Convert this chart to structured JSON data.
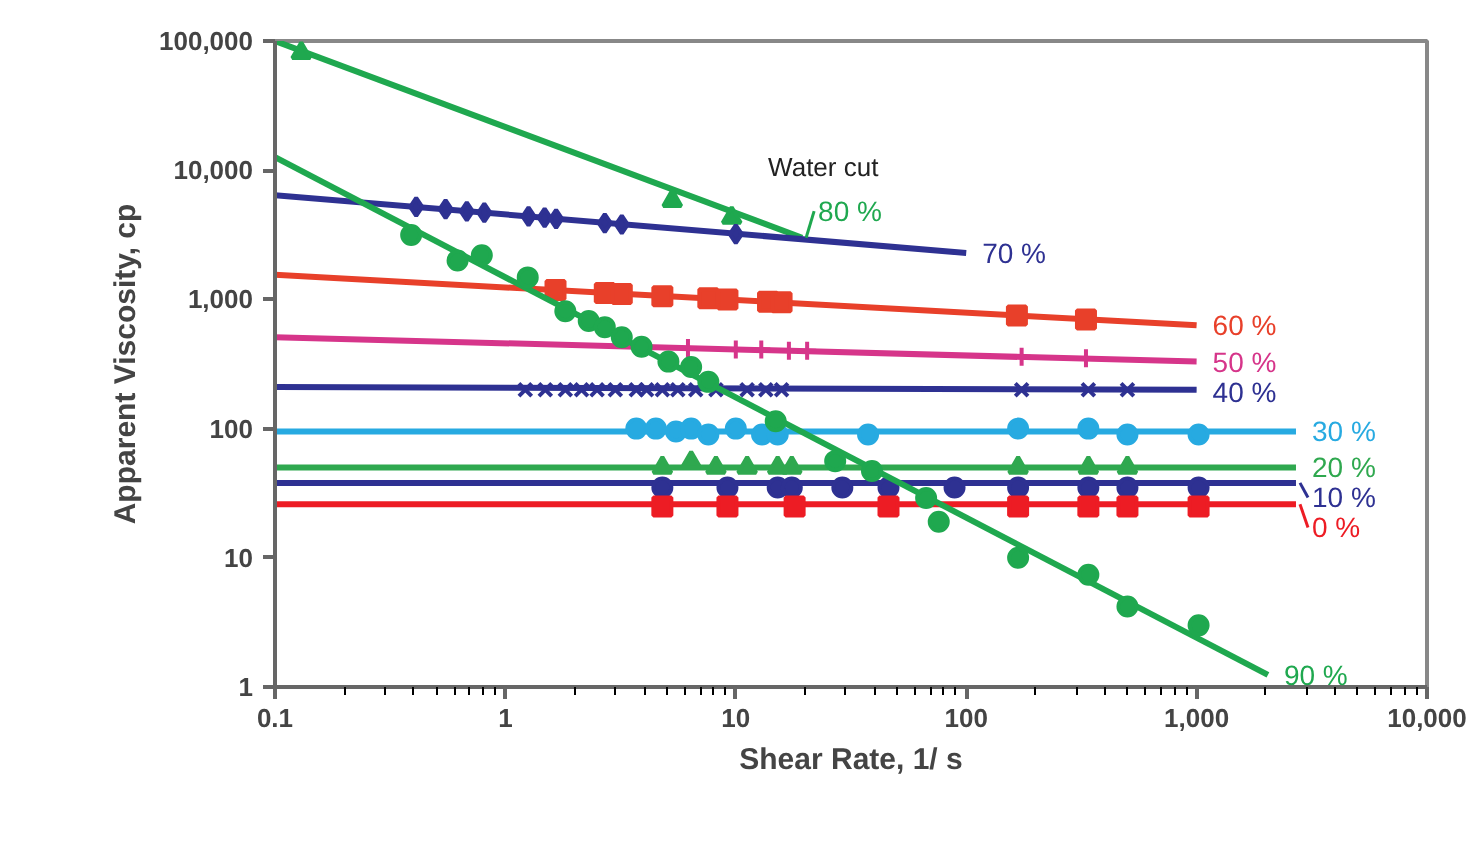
{
  "chart_data": {
    "type": "scatter",
    "xlabel": "Shear Rate, 1/ s",
    "ylabel": "Apparent Viscosity, cp",
    "log": "xy",
    "grid": false,
    "legend": "right",
    "xlim": [
      0.1,
      10000
    ],
    "ylim": [
      1,
      100000
    ],
    "xticks": [
      0.1,
      1,
      10,
      100,
      {
        "value": 1000,
        "label": "1,000"
      },
      {
        "value": 10000,
        "label": "10,000"
      }
    ],
    "yticks": [
      1,
      10,
      100,
      {
        "value": 1000,
        "label": "1,000"
      },
      {
        "value": 10000,
        "label": "10,000"
      },
      {
        "value": 100000,
        "label": "100,000"
      }
    ],
    "series": [
      {
        "type": "line",
        "name": "80 %",
        "color": "#1fa84f",
        "x": [
          0.1,
          19.4
        ],
        "values": [
          100000,
          3000
        ]
      },
      {
        "marker": "triangle",
        "color": "#1fa84f",
        "x": [
          0.13,
          5.3,
          9.6
        ],
        "values": [
          81000,
          5800,
          4300
        ]
      },
      {
        "type": "line",
        "name": "70 %",
        "color": "#2e3192",
        "x": [
          0.1,
          100
        ],
        "values": [
          6400,
          2290
        ]
      },
      {
        "marker": "diamond",
        "color": "#2e3192",
        "x": [
          0.41,
          0.55,
          0.68,
          0.81,
          1.26,
          1.48,
          1.66,
          2.7,
          3.2,
          10
        ],
        "values": [
          5200,
          5000,
          4800,
          4700,
          4400,
          4300,
          4200,
          3900,
          3800,
          3200
        ]
      },
      {
        "type": "line",
        "name": "60 %",
        "color": "#e8402a",
        "x": [
          0.1,
          1000
        ],
        "values": [
          1550,
          630
        ]
      },
      {
        "marker": "square",
        "color": "#e8402a",
        "x": [
          1.65,
          2.7,
          3.2,
          4.8,
          7.6,
          9.2,
          13.8,
          15.8,
          166,
          331
        ],
        "values": [
          1180,
          1120,
          1100,
          1060,
          1020,
          1000,
          960,
          950,
          750,
          700
        ]
      },
      {
        "type": "line",
        "name": "50 %",
        "color": "#d6358a",
        "x": [
          0.1,
          1000
        ],
        "values": [
          510,
          330
        ]
      },
      {
        "marker": "cross",
        "color": "#d6358a",
        "x": [
          6.2,
          10,
          12.9,
          17,
          20.4,
          174,
          331
        ],
        "values": [
          420,
          410,
          410,
          400,
          400,
          360,
          350
        ]
      },
      {
        "type": "line",
        "name": "40 %",
        "color": "#2e3192",
        "x": [
          0.1,
          1000
        ],
        "values": [
          210,
          200
        ]
      },
      {
        "marker": "x",
        "color": "#2e3192",
        "x": [
          1.22,
          1.49,
          1.82,
          2.14,
          2.5,
          3.0,
          3.7,
          4.1,
          4.8,
          5.6,
          6.7,
          8.2,
          11.2,
          13.5,
          15.8,
          174,
          339,
          501
        ],
        "values": [
          200,
          200,
          200,
          200,
          200,
          200,
          200,
          200,
          200,
          200,
          200,
          200,
          200,
          200,
          200,
          200,
          200,
          200
        ]
      },
      {
        "type": "line",
        "name": "30 %",
        "color": "#27aae1",
        "x": [
          0.1,
          2700
        ],
        "values": [
          95,
          95
        ]
      },
      {
        "marker": "circle",
        "color": "#27aae1",
        "x": [
          3.7,
          4.5,
          5.5,
          6.4,
          7.6,
          10,
          13,
          15.2,
          37.5,
          168,
          339,
          501,
          1020
        ],
        "values": [
          100,
          100,
          95,
          100,
          90,
          100,
          90,
          90,
          90,
          100,
          100,
          90,
          90
        ]
      },
      {
        "type": "line",
        "name": "20 %",
        "color": "#2fa84f",
        "x": [
          0.1,
          2700
        ],
        "values": [
          50,
          50
        ]
      },
      {
        "marker": "triangle",
        "color": "#2fa84f",
        "x": [
          4.8,
          6.4,
          8.2,
          11.2,
          15.2,
          17.5,
          168,
          339,
          501
        ],
        "values": [
          50,
          55,
          50,
          50,
          50,
          50,
          50,
          50,
          50
        ]
      },
      {
        "type": "line",
        "name": "10 %",
        "color": "#2e3192",
        "x": [
          0.1,
          2700
        ],
        "values": [
          38,
          38
        ]
      },
      {
        "marker": "circle",
        "color": "#2e3192",
        "x": [
          4.8,
          9.2,
          15.2,
          17.5,
          29,
          46,
          89,
          168,
          339,
          501,
          1020
        ],
        "values": [
          35,
          35,
          35,
          35,
          35,
          35,
          35,
          35,
          35,
          35,
          35
        ]
      },
      {
        "type": "line",
        "name": "0 %",
        "color": "#ed1c24",
        "x": [
          0.1,
          2700
        ],
        "values": [
          26,
          26
        ]
      },
      {
        "marker": "square",
        "color": "#ed1c24",
        "x": [
          4.8,
          9.2,
          18,
          46,
          168,
          339,
          501,
          1020
        ],
        "values": [
          25,
          25,
          25,
          25,
          25,
          25,
          25,
          25
        ]
      },
      {
        "type": "line",
        "name": "90 %",
        "color": "#1fa84f",
        "x": [
          0.1,
          2040
        ],
        "values": [
          12600,
          1.24
        ]
      },
      {
        "marker": "circle",
        "color": "#1fa84f",
        "x": [
          0.39,
          0.62,
          0.79,
          1.25,
          1.82,
          2.3,
          2.7,
          3.2,
          3.9,
          5.1,
          6.4,
          7.6,
          14.9,
          27,
          39,
          67,
          76,
          168,
          339,
          501,
          1020
        ],
        "values": [
          3150,
          2000,
          2200,
          1480,
          810,
          680,
          610,
          510,
          430,
          330,
          300,
          230,
          114,
          56,
          47,
          29,
          19,
          10,
          7.4,
          4.2,
          3.0
        ]
      }
    ],
    "annotations": [
      "Water cut"
    ]
  }
}
